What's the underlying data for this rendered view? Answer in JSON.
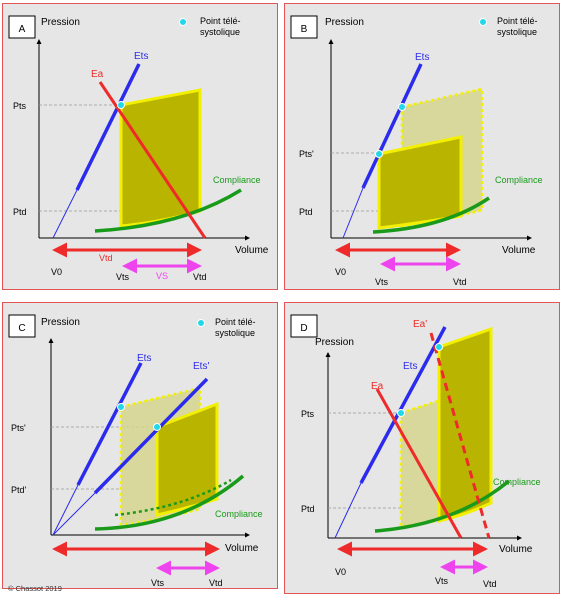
{
  "panels": {
    "A": {
      "letter": "A",
      "pression": "Pression",
      "legend": "Point télé-\nsystolique",
      "pts": "Pts",
      "ptd": "Ptd",
      "volume": "Volume",
      "v0": "V0",
      "vts": "Vts",
      "vtd": "Vtd",
      "ea": "Ea",
      "ets": "Ets",
      "compliance": "Compliance",
      "vtd_arrow": "Vtd",
      "vs": "VS"
    },
    "B": {
      "letter": "B",
      "pression": "Pression",
      "legend": "Point télé-\nsystolique",
      "pts_prime": "Pts'",
      "ptd": "Ptd",
      "volume": "Volume",
      "v0": "V0",
      "vts": "Vts",
      "vtd": "Vtd",
      "ets": "Ets",
      "compliance": "Compliance"
    },
    "C": {
      "letter": "C",
      "pression": "Pression",
      "legend": "Point télé-\nsystolique",
      "pts_prime": "Pts'",
      "ptd_prime": "Ptd'",
      "volume": "Volume",
      "vts": "Vts",
      "vtd": "Vtd",
      "ets": "Ets",
      "ets_prime": "Ets'",
      "compliance": "Compliance"
    },
    "D": {
      "letter": "D",
      "pression": "Pression",
      "pts": "Pts",
      "ptd": "Ptd",
      "volume": "Volume",
      "v0": "V0",
      "vts": "Vts",
      "vtd": "Vtd",
      "ea": "Ea",
      "ea_prime": "Ea'",
      "ets": "Ets",
      "compliance": "Compliance"
    }
  },
  "copyright": "© Chassot 2019",
  "colors": {
    "ets": "#2b2bee",
    "ea": "#ee2a2a",
    "compliance": "#1a9a1a",
    "loop_fill": "#b8b400",
    "loop_stroke": "#f2f000",
    "point": "#20d8e8",
    "arrow_red": "#ee2a2a",
    "arrow_pink": "#ee44ee",
    "panel_bg": "#e6e6e6",
    "panel_border": "#e05555"
  }
}
